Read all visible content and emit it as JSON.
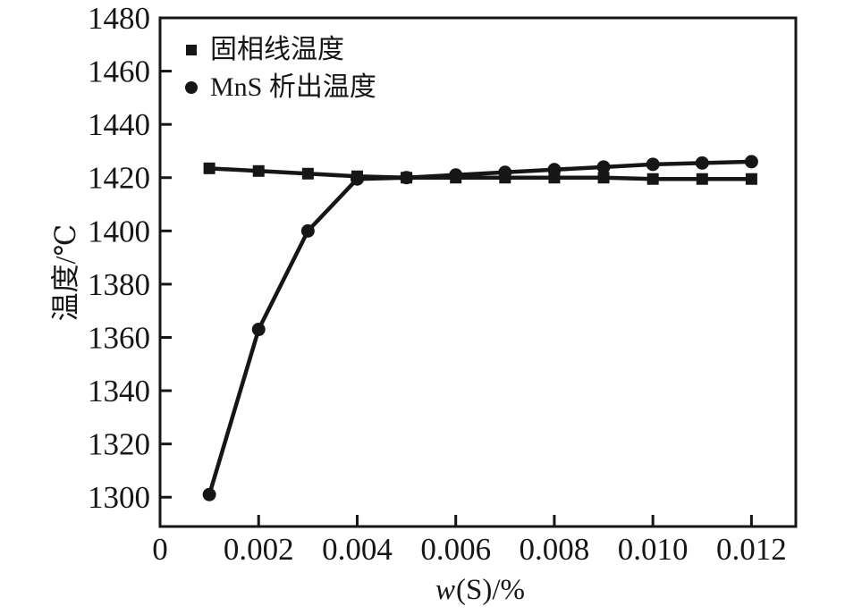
{
  "chart_data": {
    "type": "line",
    "title": "",
    "ylabel": "温度/℃",
    "xlabel_prefix": "w",
    "xlabel_suffix": "(S)/%",
    "xlim": [
      0,
      0.0129
    ],
    "ylim": [
      1289,
      1480
    ],
    "grid": false,
    "legend_position": "top-left-inside",
    "line_color": "#161616",
    "x": [
      0.001,
      0.002,
      0.003,
      0.004,
      0.005,
      0.006,
      0.007,
      0.008,
      0.009,
      0.01,
      0.011,
      0.012
    ],
    "series": [
      {
        "name": "固相线温度",
        "marker": "square",
        "color": "#161616",
        "values": [
          1423.5,
          1422.5,
          1421.5,
          1420.5,
          1420,
          1420,
          1420,
          1420,
          1420,
          1419.5,
          1419.5,
          1419.5
        ]
      },
      {
        "name": "MnS 析出温度",
        "marker": "circle",
        "color": "#161616",
        "values": [
          1301,
          1363,
          1400,
          1419.5,
          1420,
          1421,
          1422,
          1423,
          1424,
          1425,
          1425.5,
          1426
        ]
      }
    ],
    "xticks": {
      "values": [
        0,
        0.002,
        0.004,
        0.006,
        0.008,
        0.01,
        0.012
      ],
      "labels": [
        "0",
        "0.002",
        "0.004",
        "0.006",
        "0.008",
        "0.010",
        "0.012"
      ]
    },
    "yticks": {
      "values": [
        1300,
        1320,
        1340,
        1360,
        1380,
        1400,
        1420,
        1440,
        1460,
        1480
      ],
      "labels": [
        "1300",
        "1320",
        "1340",
        "1360",
        "1380",
        "1400",
        "1420",
        "1440",
        "1460",
        "1480"
      ]
    }
  }
}
